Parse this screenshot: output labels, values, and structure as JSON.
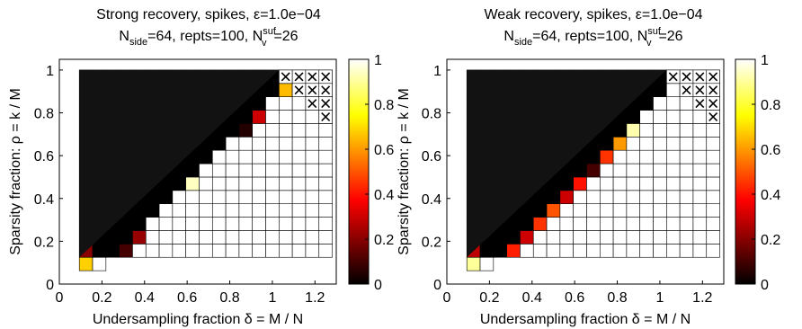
{
  "chart_data": [
    {
      "type": "heatmap",
      "title_line1": "Strong recovery,  spikes, ε=1.0e−04",
      "title_line2": {
        "p1": "N",
        "sub1": "side",
        "p2": "=64,  repts=100,  N",
        "sup": "suf",
        "sub2": "v",
        "p3": "=26"
      },
      "xlabel": "Undersampling fraction δ = M / N",
      "ylabel": "Sparsity fraction: ρ = k / M",
      "xlim": [
        0,
        1.3
      ],
      "ylim": [
        0,
        1.05
      ],
      "xticks": [
        0,
        0.2,
        0.4,
        0.6,
        0.8,
        1,
        1.2
      ],
      "xtick_labels": [
        "0",
        "0.2",
        "0.4",
        "0.6",
        "0.8",
        "1",
        "1.2"
      ],
      "yticks": [
        0,
        0.2,
        0.4,
        0.6,
        0.8,
        1
      ],
      "ytick_labels": [
        "0",
        "0.2",
        "0.4",
        "0.6",
        "0.8",
        "1"
      ],
      "delta": [
        0.125,
        0.1875,
        0.25,
        0.3125,
        0.375,
        0.4375,
        0.5,
        0.5625,
        0.625,
        0.6875,
        0.75,
        0.8125,
        0.875,
        0.9375,
        1.0,
        1.0625,
        1.125,
        1.1875,
        1.25
      ],
      "rho_step": 0.0625,
      "min_row": [
        2,
        2,
        3,
        3,
        3,
        3,
        3,
        3,
        3,
        3,
        3,
        3,
        3,
        3,
        3,
        3,
        3,
        3,
        3
      ],
      "crosses": [
        [
          16,
          16
        ],
        [
          17,
          16
        ],
        [
          18,
          16
        ],
        [
          19,
          16
        ],
        [
          17,
          15
        ],
        [
          18,
          15
        ],
        [
          19,
          15
        ],
        [
          18,
          14
        ],
        [
          19,
          14
        ],
        [
          19,
          13
        ]
      ],
      "cells": [
        [
          1,
          0.68
        ],
        [
          1,
          0.2
        ],
        [
          1,
          0.0
        ],
        [
          3,
          0.35
        ],
        [
          3,
          0.0
        ],
        [
          4,
          0.1
        ],
        [
          4,
          0.0
        ],
        [
          5,
          0.22
        ],
        [
          5,
          0.0
        ],
        [
          6,
          0.0
        ],
        [
          7,
          0.0
        ],
        [
          8,
          0.0
        ],
        [
          9,
          0.94
        ],
        [
          9,
          0.0
        ],
        [
          10,
          0.0
        ],
        [
          11,
          0.0
        ],
        [
          12,
          0.0
        ],
        [
          13,
          0.05
        ],
        [
          13,
          0.0
        ],
        [
          14,
          0.3
        ],
        [
          14,
          0.0
        ],
        [
          15,
          0.0
        ],
        [
          16,
          0.65
        ],
        [
          16,
          0.0
        ]
      ],
      "colorbar": {
        "range": [
          0,
          1
        ],
        "ticks": [
          "0",
          "0.2",
          "0.4",
          "0.6",
          "0.8",
          "1"
        ]
      }
    },
    {
      "type": "heatmap",
      "title_line1": "Weak recovery,  spikes, ε=1.0e−04",
      "title_line2": {
        "p1": "N",
        "sub1": "side",
        "p2": "=64,  repts=100,  N",
        "sup": "suf",
        "sub2": "v",
        "p3": "=26"
      },
      "xlabel": "Undersampling fraction δ = M / N",
      "ylabel": "Sparsity fraction: ρ = k / M",
      "xlim": [
        0,
        1.3
      ],
      "ylim": [
        0,
        1.05
      ],
      "xticks": [
        0,
        0.2,
        0.4,
        0.6,
        0.8,
        1,
        1.2
      ],
      "xtick_labels": [
        "0",
        "0.2",
        "0.4",
        "0.6",
        "0.8",
        "1",
        "1.2"
      ],
      "yticks": [
        0,
        0.2,
        0.4,
        0.6,
        0.8,
        1
      ],
      "ytick_labels": [
        "0",
        "0.2",
        "0.4",
        "0.6",
        "0.8",
        "1"
      ],
      "delta": [
        0.125,
        0.1875,
        0.25,
        0.3125,
        0.375,
        0.4375,
        0.5,
        0.5625,
        0.625,
        0.6875,
        0.75,
        0.8125,
        0.875,
        0.9375,
        1.0,
        1.0625,
        1.125,
        1.1875,
        1.25
      ],
      "rho_step": 0.0625,
      "min_row": [
        2,
        2,
        3,
        3,
        3,
        3,
        3,
        3,
        3,
        3,
        3,
        3,
        3,
        3,
        3,
        3,
        3,
        3,
        3
      ],
      "crosses": [
        [
          16,
          16
        ],
        [
          17,
          16
        ],
        [
          18,
          16
        ],
        [
          19,
          16
        ],
        [
          17,
          15
        ],
        [
          18,
          15
        ],
        [
          19,
          15
        ],
        [
          18,
          14
        ],
        [
          19,
          14
        ],
        [
          19,
          13
        ]
      ],
      "cells": [
        [
          1,
          0.9
        ],
        [
          1,
          0.28
        ],
        [
          1,
          0.02
        ],
        [
          3,
          0.97
        ],
        [
          3,
          0.0
        ],
        [
          4,
          0.42
        ],
        [
          4,
          0.0
        ],
        [
          5,
          0.3
        ],
        [
          5,
          0.0
        ],
        [
          6,
          0.45
        ],
        [
          6,
          0.0
        ],
        [
          7,
          0.5
        ],
        [
          7,
          0.0
        ],
        [
          8,
          0.3
        ],
        [
          8,
          0.0
        ],
        [
          9,
          0.4
        ],
        [
          9,
          0.0
        ],
        [
          10,
          0.1
        ],
        [
          10,
          0.0
        ],
        [
          11,
          0.45
        ],
        [
          11,
          0.0
        ],
        [
          12,
          0.6
        ],
        [
          12,
          0.0
        ],
        [
          13,
          0.92
        ],
        [
          13,
          0.0
        ],
        [
          14,
          0.0
        ],
        [
          15,
          0.0
        ],
        [
          16,
          0.0
        ]
      ],
      "colorbar": {
        "range": [
          0,
          1
        ],
        "ticks": [
          "0",
          "0.2",
          "0.4",
          "0.6",
          "0.8",
          "1"
        ]
      }
    }
  ]
}
